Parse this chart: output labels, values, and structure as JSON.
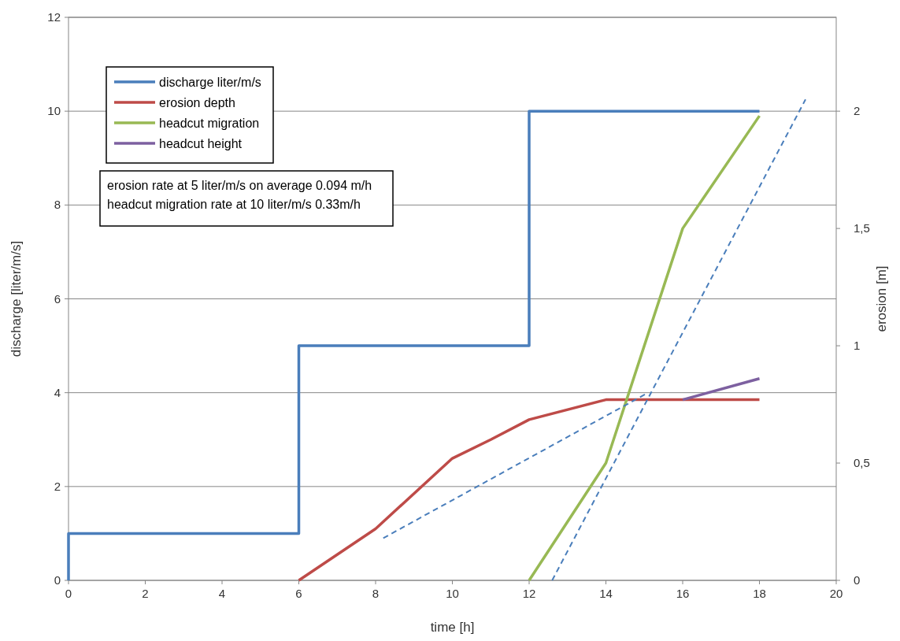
{
  "chart_data": {
    "type": "line",
    "xlabel": "time [h]",
    "ylabel": "discharge [liter/m/s]",
    "y2label": "erosion [m]",
    "xlim": [
      0,
      20
    ],
    "xticks": [
      0,
      2,
      4,
      6,
      8,
      10,
      12,
      14,
      16,
      18,
      20
    ],
    "ylim": [
      0,
      12
    ],
    "yticks": [
      0,
      2,
      4,
      6,
      8,
      10,
      12
    ],
    "y2lim": [
      0,
      2.4
    ],
    "y2ticks": [
      0,
      {
        "value": 0.5,
        "label": "0,5"
      },
      1,
      {
        "value": 1.5,
        "label": "1,5"
      },
      2
    ],
    "grid": "y",
    "legend": "top left",
    "line_style": "solid",
    "annotations": [
      "erosion rate at 5 liter/m/s on average 0.094 m/h",
      "headcut migration rate at 10 liter/m/s 0.33m/h"
    ],
    "series": [
      {
        "name": "discharge liter/m/s",
        "color": "#4a7ebb",
        "x": [
          0,
          0,
          6,
          6,
          12,
          12,
          18
        ],
        "values": [
          0,
          1,
          1,
          5,
          5,
          10,
          10
        ]
      },
      {
        "name": "erosion depth",
        "color": "#be4b48",
        "axis": "y2",
        "x": [
          6,
          8,
          10,
          11,
          12,
          14,
          16,
          18
        ],
        "values": [
          0,
          0.22,
          0.52,
          0.6,
          0.685,
          0.77,
          0.77,
          0.77
        ]
      },
      {
        "name": "headcut migration",
        "color": "#98b954",
        "axis": "y2",
        "x": [
          12,
          14,
          16,
          18
        ],
        "values": [
          0,
          0.5,
          1.5,
          1.98
        ]
      },
      {
        "name": "headcut height",
        "color": "#7d60a0",
        "axis": "y2",
        "x": [
          16,
          18
        ],
        "values": [
          0.77,
          0.86
        ]
      },
      {
        "color": "#4a7ebb",
        "axis": "y2",
        "line_style": "dashed",
        "x": [
          8.2,
          15.1
        ],
        "values": [
          0.18,
          0.8
        ]
      },
      {
        "color": "#4a7ebb",
        "axis": "y2",
        "line_style": "dashed",
        "x": [
          12.6,
          19.2
        ],
        "values": [
          0,
          2.05
        ]
      }
    ]
  }
}
